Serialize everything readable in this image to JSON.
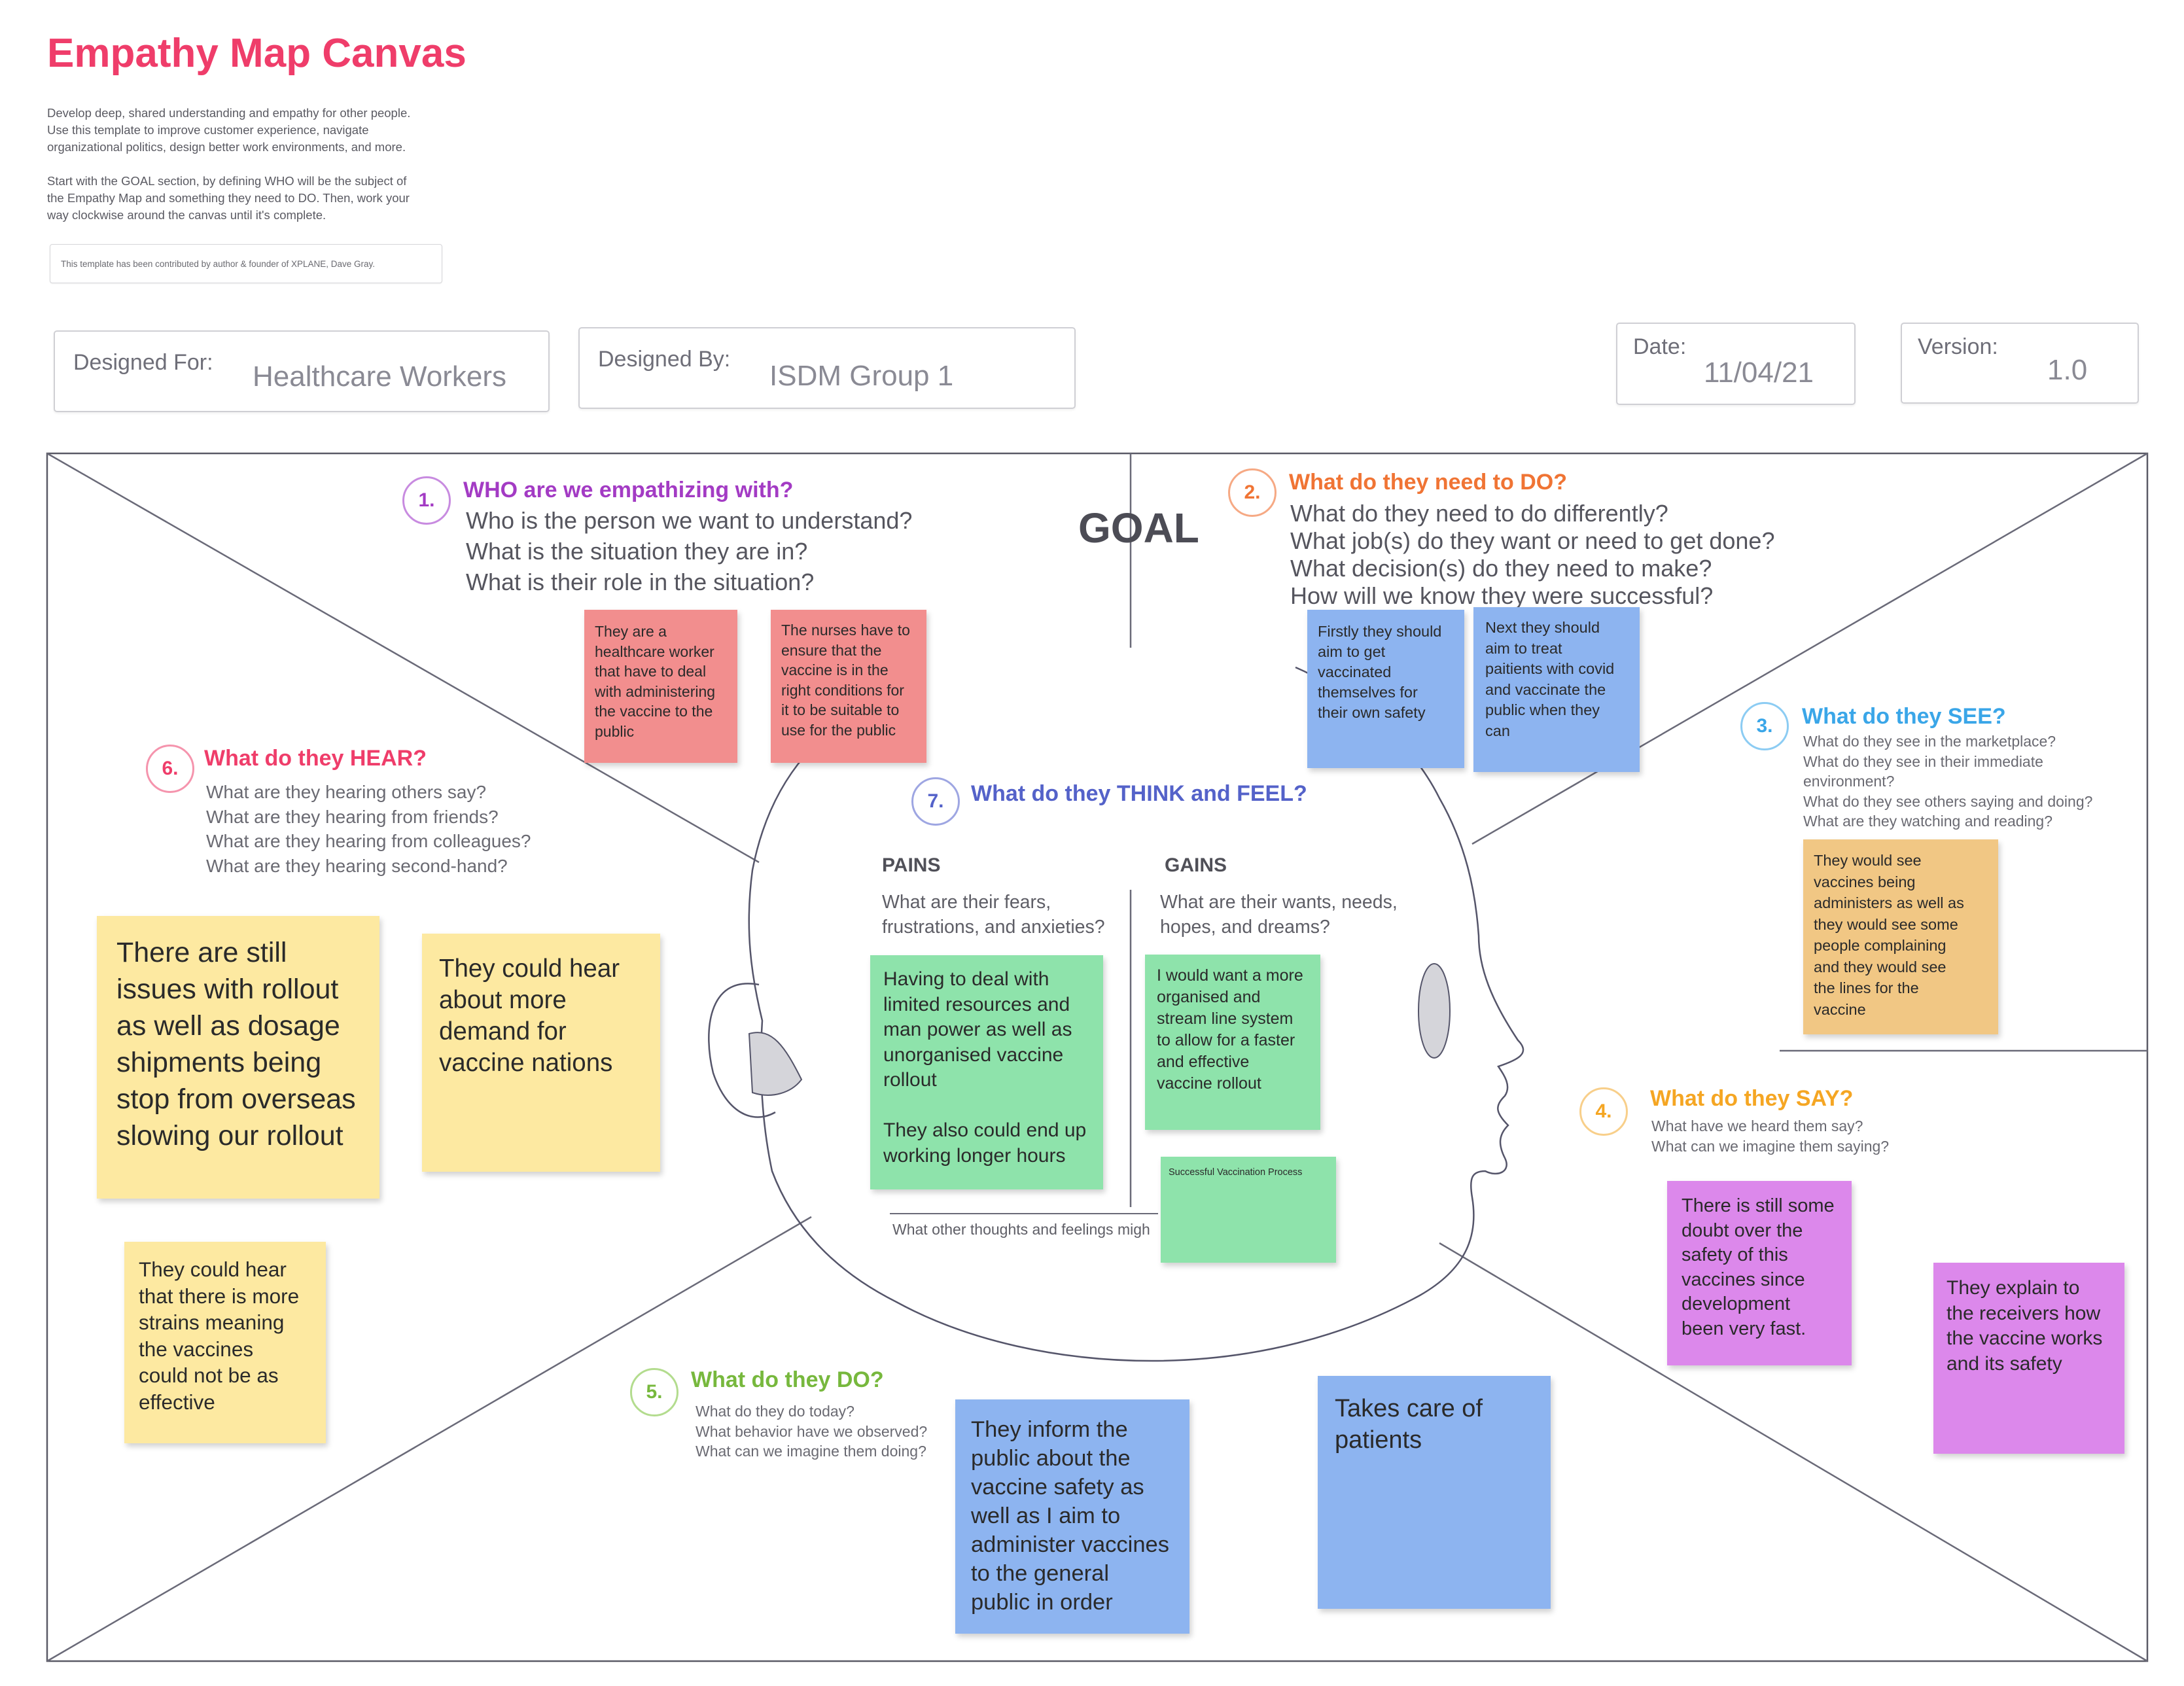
{
  "header": {
    "title": "Empathy Map Canvas",
    "intro": "Develop deep, shared understanding and empathy for other people.\nUse this template to improve customer experience, navigate\norganizational politics, design better work environments, and more.\n\nStart with the GOAL section, by defining WHO will be the subject of\nthe Empathy Map and something they need to DO. Then, work your\nway clockwise around the canvas until it's complete.",
    "credit": "This template has been contributed by author & founder of XPLANE, Dave Gray."
  },
  "fields": {
    "designed_for": {
      "label": "Designed For:",
      "value": "Healthcare Workers"
    },
    "designed_by": {
      "label": "Designed By:",
      "value": "ISDM Group 1"
    },
    "date": {
      "label": "Date:",
      "value": "11/04/21"
    },
    "version": {
      "label": "Version:",
      "value": "1.0"
    }
  },
  "goal": "GOAL",
  "sections": {
    "who": {
      "num": "1.",
      "title": "WHO are we empathizing with?",
      "lines": [
        "Who is the person we want to understand?",
        "What is the situation they are in?",
        "What is their role in the situation?"
      ]
    },
    "do_need": {
      "num": "2.",
      "title": "What do they need to DO?",
      "lines": [
        "What do they need to do differently?",
        "What job(s) do they want or need to get done?",
        "What decision(s) do they need to make?",
        "How will we know they were successful?"
      ]
    },
    "see": {
      "num": "3.",
      "title": "What do they SEE?",
      "lines": [
        "What do they see in the marketplace?",
        "What do they see in their immediate",
        "environment?",
        "What do they see others saying and doing?",
        "What are they watching and reading?"
      ]
    },
    "say": {
      "num": "4.",
      "title": "What do they SAY?",
      "lines": [
        "What have we heard them say?",
        "What can we imagine them saying?"
      ]
    },
    "do": {
      "num": "5.",
      "title": "What do they DO?",
      "lines": [
        "What do they do today?",
        "What behavior have we observed?",
        "What can we imagine them doing?"
      ]
    },
    "hear": {
      "num": "6.",
      "title": "What do they HEAR?",
      "lines": [
        "What are they hearing others say?",
        "What are they hearing from friends?",
        "What are they hearing from colleagues?",
        "What are they hearing second-hand?"
      ]
    },
    "think": {
      "num": "7.",
      "title": "What do they THINK and FEEL?",
      "pains": "PAINS",
      "pains_sub": "What are their fears,\nfrustrations, and anxieties?",
      "gains": "GAINS",
      "gains_sub": "What are their wants, needs,\nhopes, and dreams?",
      "other": "What other thoughts and feelings migh"
    }
  },
  "colors": {
    "who": "#a33bc4",
    "do_need": "#f07434",
    "see": "#3aa6e8",
    "say": "#f5a623",
    "do": "#77b83d",
    "hear": "#ef3d6a",
    "think": "#5462c9"
  },
  "notes": {
    "who_1": "They are a\nhealthcare worker\nthat have to deal\nwith administering\nthe vaccine to the\npublic",
    "who_2": "The nurses have to\nensure that the\nvaccine is in the\nright conditions for\nit to be suitable to\nuse for the public",
    "need_1": "Firstly they should\naim to get\nvaccinated\nthemselves for\ntheir own safety",
    "need_2": "Next they should\naim to treat\npaitients with covid\nand vaccinate the\npublic when they\ncan",
    "see_1": "They would see\nvaccines being\nadministers as well as\nthey would see some\npeople complaining\nand they would see\nthe lines for the\nvaccine",
    "pains_1": "Having to deal with\nlimited resources and\nman power as well as\nunorganised vaccine\nrollout\n\nThey also could end up\nworking longer hours",
    "gains_1": "I would want a more\norganised and\nstream line system\nto allow for a faster\nand effective\nvaccine rollout",
    "gains_2": "Successful Vaccination Process",
    "hear_1": "There are still\nissues with rollout\nas well as dosage\nshipments being\nstop from overseas\nslowing our rollout",
    "hear_2": "They could hear\nabout more\ndemand for\nvaccine nations",
    "hear_3": "They could hear\nthat there is more\nstrains meaning\nthe vaccines\ncould not be as\neffective",
    "do_1": "They inform the\npublic about the\nvaccine safety as\nwell as I aim to\nadminister vaccines\nto the general\npublic in order",
    "do_2": "Takes care of\npatients",
    "say_1": "There is still some\ndoubt over the\nsafety of this\nvaccines since\ndevelopment\nbeen very fast.",
    "say_2": "They explain to\nthe receivers how\nthe vaccine works\nand its safety"
  }
}
